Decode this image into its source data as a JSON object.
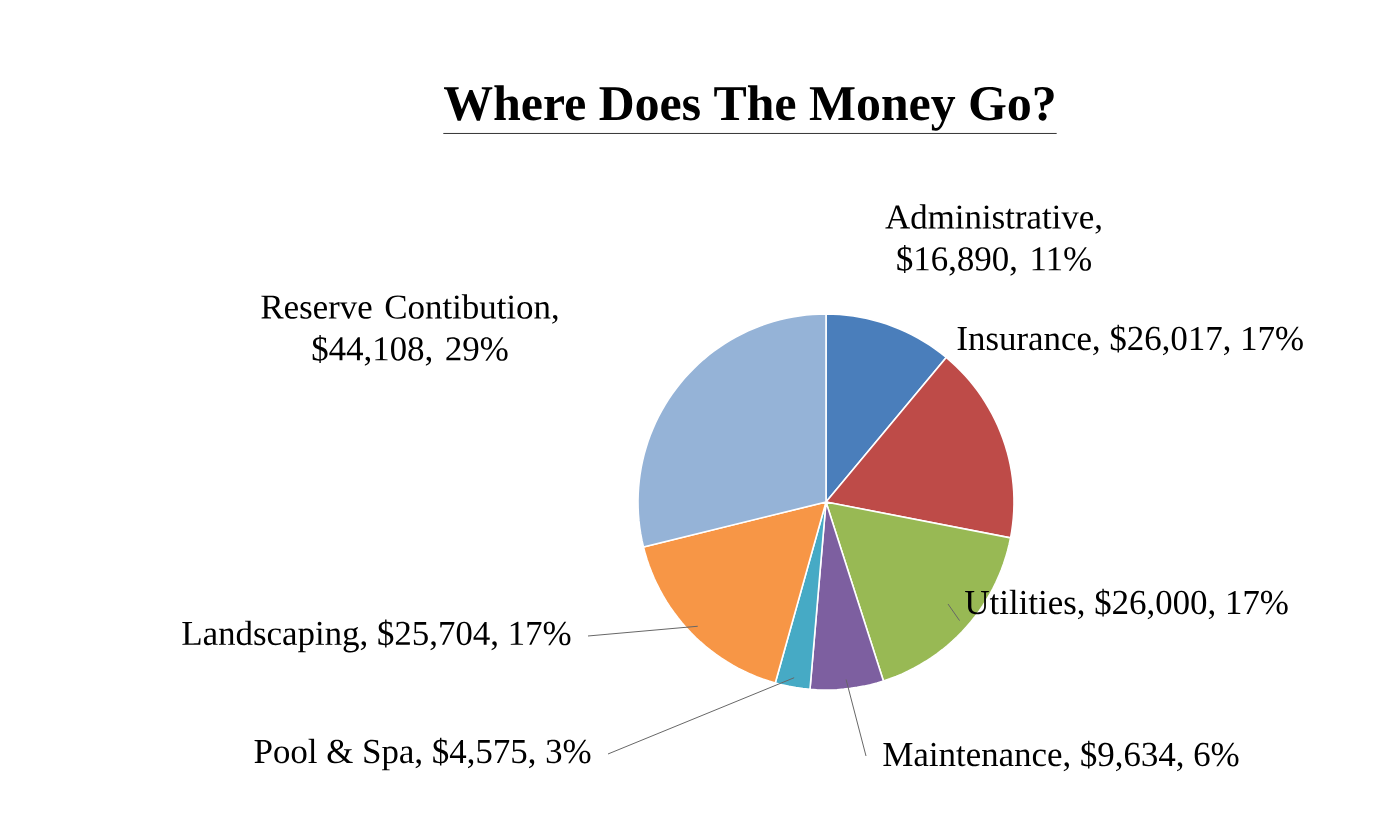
{
  "chart_data": {
    "type": "pie",
    "title": "Where Does The Money Go?",
    "categories": [
      "Administrative",
      "Insurance",
      "Utilities",
      "Maintenance",
      "Pool & Spa",
      "Landscaping",
      "Reserve Contibution"
    ],
    "values": [
      16890,
      26017,
      26000,
      9634,
      4575,
      25704,
      44108
    ],
    "value_labels": [
      ", $16,890, 11%",
      ", $26,017, 17%",
      ", $26,000, 17%",
      ", $9,634, 6%",
      ", $4,575, 3%",
      ", $25,704, 17%",
      ", $44,108, 29%"
    ],
    "colors": [
      "#4a7ebb",
      "#be4b48",
      "#98b954",
      "#7d5fa0",
      "#46aac5",
      "#f79646",
      "#95b3d7"
    ],
    "legend": false
  }
}
